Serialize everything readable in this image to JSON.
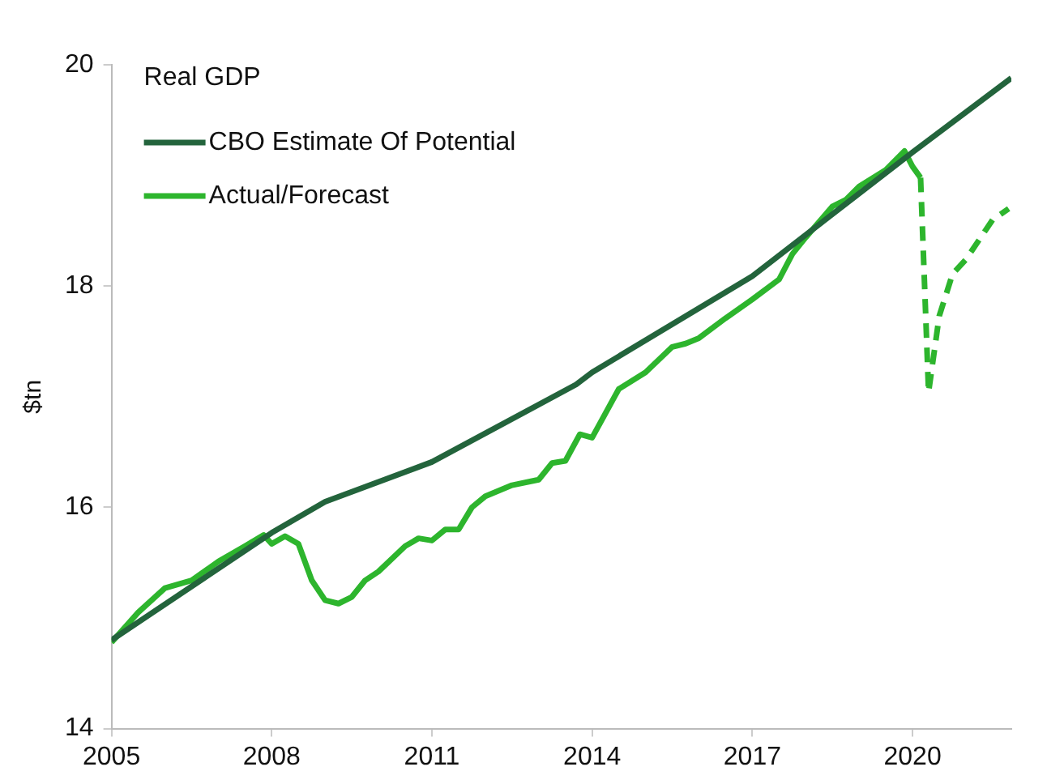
{
  "chart_data": {
    "type": "line",
    "title": "Real GDP",
    "ylabel": "$tn",
    "xlim": [
      2005,
      2021.85
    ],
    "xticks": [
      2005,
      2008,
      2011,
      2014,
      2017,
      2020
    ],
    "ylim": [
      14,
      20
    ],
    "yticks": [
      14,
      16,
      18,
      20
    ],
    "grid": false,
    "legend": "top left",
    "marker": "none",
    "series": [
      {
        "name": "CBO Estimate Of Potential",
        "color": "#23643c",
        "line_style": "solid",
        "x": [
          2005,
          2008,
          2009,
          2011,
          2013.7,
          2014,
          2017,
          2020,
          2021.85
        ],
        "values": [
          14.8,
          15.77,
          16.05,
          16.41,
          17.11,
          17.22,
          18.09,
          19.21,
          19.88
        ]
      },
      {
        "name": "Actual/Forecast",
        "color": "#2db52d",
        "line_style": "solid",
        "x": [
          2005,
          2005.5,
          2006,
          2006.5,
          2007,
          2007.5,
          2007.85,
          2008,
          2008.25,
          2008.5,
          2008.75,
          2009,
          2009.25,
          2009.5,
          2009.75,
          2010,
          2010.5,
          2010.75,
          2011,
          2011.25,
          2011.5,
          2011.75,
          2012,
          2012.5,
          2013,
          2013.25,
          2013.5,
          2013.77,
          2014,
          2014.5,
          2015,
          2015.5,
          2015.75,
          2016,
          2016.5,
          2017,
          2017.5,
          2017.75,
          2018,
          2018.5,
          2018.75,
          2019,
          2019.5,
          2019.85,
          2020,
          2020.15
        ],
        "values": [
          14.78,
          15.05,
          15.27,
          15.34,
          15.51,
          15.65,
          15.75,
          15.67,
          15.74,
          15.67,
          15.34,
          15.16,
          15.13,
          15.19,
          15.34,
          15.42,
          15.65,
          15.72,
          15.7,
          15.8,
          15.8,
          16.0,
          16.1,
          16.2,
          16.25,
          16.4,
          16.42,
          16.66,
          16.63,
          17.07,
          17.22,
          17.45,
          17.48,
          17.53,
          17.71,
          17.88,
          18.06,
          18.29,
          18.44,
          18.72,
          18.78,
          18.9,
          19.05,
          19.22,
          19.08,
          18.98
        ]
      },
      {
        "color": "#2db52d",
        "line_style": "dashed",
        "x": [
          2020.15,
          2020.3,
          2020.5,
          2020.75,
          2021,
          2021.5,
          2021.8
        ],
        "values": [
          18.98,
          17.04,
          17.73,
          18.11,
          18.24,
          18.6,
          18.7
        ]
      }
    ]
  }
}
